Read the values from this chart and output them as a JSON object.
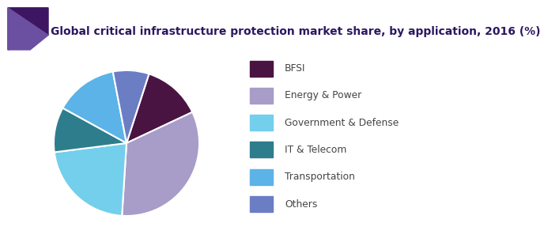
{
  "title": "Global critical infrastructure protection market share, by application, 2016 (%)",
  "labels": [
    "BFSI",
    "Energy & Power",
    "Government & Defense",
    "IT & Telecom",
    "Transportation",
    "Others"
  ],
  "values": [
    13,
    33,
    22,
    10,
    14,
    8
  ],
  "colors": [
    "#4A1442",
    "#A89CC8",
    "#73CFEC",
    "#2E7D8C",
    "#5BB3E8",
    "#6B7EC4"
  ],
  "legend_colors": [
    "#4A1442",
    "#A89CC8",
    "#73CFEC",
    "#2E7D8C",
    "#5BB3E8",
    "#6B7EC4"
  ],
  "title_color": "#2B1760",
  "title_fontsize": 10.0,
  "background_color": "#FFFFFF",
  "startangle": 72,
  "header_accent1": "#3D1560",
  "header_accent2": "#6B4FA0",
  "header_line_color": "#7B5EA7"
}
